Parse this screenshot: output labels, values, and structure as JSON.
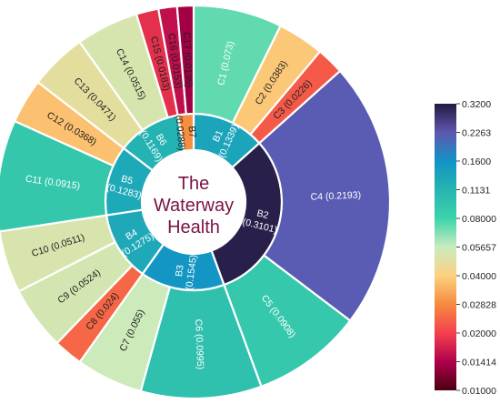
{
  "chart_data": {
    "type": "sunburst",
    "center_label_lines": [
      "The",
      "Waterway",
      "Health"
    ],
    "inner_ring": [
      {
        "name": "B1",
        "value": 0.1339
      },
      {
        "name": "B2",
        "value": 0.3101
      },
      {
        "name": "B3",
        "value": 0.1545
      },
      {
        "name": "B4",
        "value": 0.1275
      },
      {
        "name": "B5",
        "value": 0.1283
      },
      {
        "name": "B6",
        "value": 0.1169
      },
      {
        "name": "B7",
        "value": 0.0288
      }
    ],
    "outer_ring": [
      {
        "name": "C1",
        "value": 0.073,
        "label": "C1 (0.073)",
        "parent": "B1"
      },
      {
        "name": "C2",
        "value": 0.0383,
        "label": "C2 (0.0383)",
        "parent": "B1"
      },
      {
        "name": "C3",
        "value": 0.0226,
        "label": "C3 (0.0226)",
        "parent": "B1"
      },
      {
        "name": "C4",
        "value": 0.2193,
        "label": "C4 (0.2193)",
        "parent": "B2"
      },
      {
        "name": "C5",
        "value": 0.0908,
        "label": "C5 (0.0908)",
        "parent": "B2"
      },
      {
        "name": "C6",
        "value": 0.0995,
        "label": "C6 (0.0995)",
        "parent": "B3"
      },
      {
        "name": "C7",
        "value": 0.055,
        "label": "C7 (0.055)",
        "parent": "B3"
      },
      {
        "name": "C8",
        "value": 0.024,
        "label": "C8 (0.024)",
        "parent": "B4"
      },
      {
        "name": "C9",
        "value": 0.0524,
        "label": "C9 (0.0524)",
        "parent": "B4"
      },
      {
        "name": "C10",
        "value": 0.0511,
        "label": "C10 (0.0511)",
        "parent": "B4"
      },
      {
        "name": "C11",
        "value": 0.0915,
        "label": "C11 (0.0915)",
        "parent": "B5"
      },
      {
        "name": "C12",
        "value": 0.0368,
        "label": "C12 (0.0368)",
        "parent": "B5"
      },
      {
        "name": "C13",
        "value": 0.0471,
        "label": "C13 (0.0471)",
        "parent": "B6"
      },
      {
        "name": "C14",
        "value": 0.0515,
        "label": "C14 (0.0515)",
        "parent": "B6"
      },
      {
        "name": "C15",
        "value": 0.0183,
        "label": "C15 (0.0183)",
        "parent": "B6"
      },
      {
        "name": "C16",
        "value": 0.0153,
        "label": "C16 (0.0153)",
        "parent": "B7"
      },
      {
        "name": "C17",
        "value": 0.0135,
        "label": "C17 (0.0135)",
        "parent": "B7"
      }
    ],
    "colorscale": {
      "log_scale": true,
      "range": [
        0.01,
        0.32
      ],
      "stops": [
        {
          "value": 0.01,
          "color": "#4a0010"
        },
        {
          "value": 0.01414,
          "color": "#b0004c"
        },
        {
          "value": 0.02,
          "color": "#f4404e"
        },
        {
          "value": 0.02828,
          "color": "#f68a3e"
        },
        {
          "value": 0.04,
          "color": "#fcd180"
        },
        {
          "value": 0.05657,
          "color": "#c8ecbf"
        },
        {
          "value": 0.08,
          "color": "#3dd3aa"
        },
        {
          "value": 0.1131,
          "color": "#26b5b0"
        },
        {
          "value": 0.16,
          "color": "#1193c6"
        },
        {
          "value": 0.2263,
          "color": "#6057b0"
        },
        {
          "value": 0.32,
          "color": "#221a40"
        }
      ],
      "tick_labels": [
        "0.3200",
        "0.2263",
        "0.1600",
        "0.1131",
        "0.08000",
        "0.05657",
        "0.04000",
        "0.02828",
        "0.02000",
        "0.01414",
        "0.01000"
      ]
    }
  }
}
